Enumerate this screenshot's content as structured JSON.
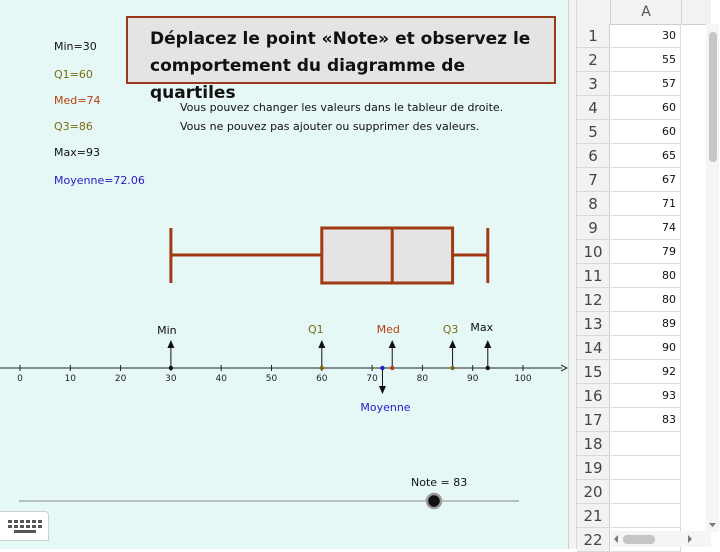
{
  "stats": {
    "min": "Min=30",
    "q1": "Q1=60",
    "med": "Med=74",
    "q3": "Q3=86",
    "max": "Max=93",
    "mean": "Moyenne=72.06"
  },
  "title": {
    "line1": "Déplacez le point «Note» et observez le",
    "line2": "comportement du diagramme de quartiles"
  },
  "info": {
    "line1": "Vous pouvez changer les valeurs dans le tableur de droite.",
    "line2": "Vous ne pouvez pas ajouter ou supprimer des valeurs."
  },
  "markers": {
    "min": "Min",
    "q1": "Q1",
    "med": "Med",
    "q3": "Q3",
    "max": "Max",
    "mean": "Moyenne"
  },
  "axis_ticks": [
    "0",
    "10",
    "20",
    "30",
    "40",
    "50",
    "60",
    "70",
    "80",
    "90",
    "100"
  ],
  "boxplot": {
    "min": 30,
    "q1": 60,
    "med": 74,
    "q3": 86,
    "max": 93,
    "mean": 72.06
  },
  "slider": {
    "label": "Note = 83",
    "value": 83,
    "min": 0,
    "max": 100
  },
  "colors": {
    "box_stroke": "#a03a12",
    "box_fill": "#e4e4e4",
    "q_color": "#7a6a12",
    "med_color": "#b5400d",
    "mean_color": "#2a18c8",
    "canvas_bg": "#e6f8f6"
  },
  "spreadsheet": {
    "column": "A",
    "row_numbers": [
      "1",
      "2",
      "3",
      "4",
      "5",
      "6",
      "7",
      "8",
      "9",
      "10",
      "11",
      "12",
      "13",
      "14",
      "15",
      "16",
      "17",
      "18",
      "19",
      "20",
      "21",
      "22"
    ],
    "values": [
      "30",
      "55",
      "57",
      "60",
      "60",
      "65",
      "67",
      "71",
      "74",
      "79",
      "80",
      "80",
      "89",
      "90",
      "92",
      "93",
      "83",
      "",
      "",
      "",
      "",
      ""
    ]
  },
  "icons": {
    "keyboard": "keyboard-icon",
    "scroll_left": "arrow-left-icon",
    "scroll_right": "arrow-right-icon"
  }
}
